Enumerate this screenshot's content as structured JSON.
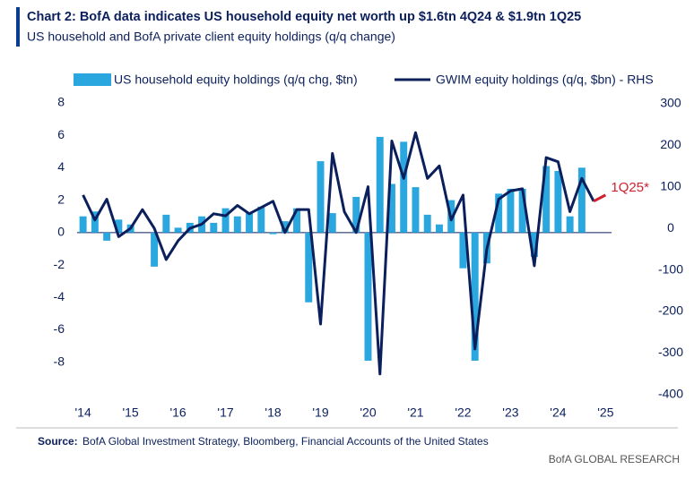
{
  "chart_data": {
    "type": "bar-line",
    "title": "Chart 2: BofA data indicates US household equity net worth up $1.6tn 4Q24 & $1.9tn 1Q25",
    "subtitle": "US household and BofA private client equity holdings (q/q change)",
    "categories": [
      "'14",
      null,
      null,
      null,
      "'15",
      null,
      null,
      null,
      "'16",
      null,
      null,
      null,
      "'17",
      null,
      null,
      null,
      "'18",
      null,
      null,
      null,
      "'19",
      null,
      null,
      null,
      "'20",
      null,
      null,
      null,
      "'21",
      null,
      null,
      null,
      "'22",
      null,
      null,
      null,
      "'23",
      null,
      null,
      null,
      "'24",
      null,
      null,
      null,
      "'25"
    ],
    "series": [
      {
        "name": "US household equity holdings (q/q chg, $tn)",
        "type": "bar",
        "color": "#2aa7df",
        "values": [
          1.0,
          1.3,
          -0.5,
          0.8,
          0.5,
          0.0,
          -2.1,
          1.1,
          0.3,
          0.6,
          1.0,
          0.6,
          1.5,
          1.0,
          1.2,
          1.6,
          -0.1,
          0.7,
          1.5,
          -4.3,
          4.4,
          1.2,
          0.0,
          2.2,
          -7.9,
          5.9,
          3.0,
          5.6,
          2.8,
          1.1,
          0.5,
          2.0,
          -2.2,
          -7.9,
          -1.9,
          2.4,
          2.7,
          2.7,
          -1.5,
          4.1,
          3.8,
          1.0,
          4.0,
          null,
          null
        ]
      },
      {
        "name": "GWIM equity holdings (q/q, $bn) - RHS",
        "type": "line",
        "axis": "y2",
        "color": "#0b1f5c",
        "last_segment_color": "#d0202e",
        "values": [
          80,
          20,
          70,
          -20,
          0,
          45,
          0,
          -75,
          -30,
          0,
          10,
          35,
          30,
          55,
          35,
          50,
          65,
          -10,
          45,
          45,
          -230,
          180,
          40,
          -10,
          100,
          -350,
          210,
          120,
          230,
          120,
          150,
          20,
          80,
          -290,
          -50,
          70,
          90,
          95,
          -90,
          170,
          160,
          40,
          120,
          65,
          80
        ]
      }
    ],
    "annotation": "1Q25*",
    "ylim": [
      -10,
      8.6
    ],
    "yticks": [
      8,
      6,
      4,
      2,
      0,
      -2,
      -4,
      -6,
      -8
    ],
    "y2lim": [
      -400,
      325
    ],
    "y2ticks": [
      300,
      200,
      100,
      0,
      -100,
      -200,
      -300,
      -400
    ],
    "source_label": "Source:",
    "source_text": "BofA Global Investment Strategy, Bloomberg, Financial Accounts of the United States",
    "footer": "BofA GLOBAL RESEARCH"
  }
}
